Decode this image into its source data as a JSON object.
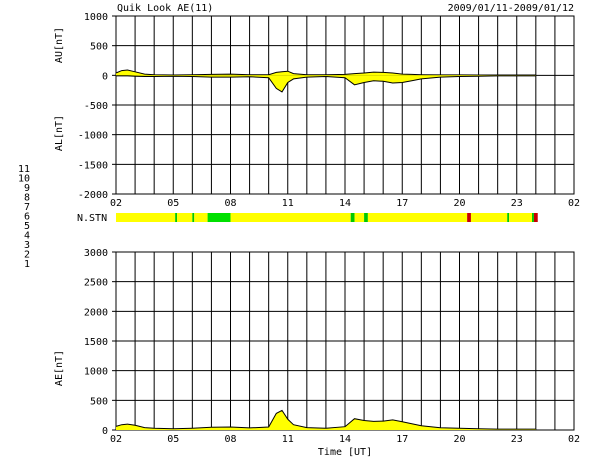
{
  "header": {
    "title": "Quik Look AE(11)",
    "date_range": "2009/01/11-2009/01/12"
  },
  "legend_numbers": [
    {
      "label": "11",
      "color": "#00c8c8"
    },
    {
      "label": "10",
      "color": "#c800c8"
    },
    {
      "label": "9",
      "color": "#0000c8"
    },
    {
      "label": "8",
      "color": "#e8e8a0"
    },
    {
      "label": "7",
      "color": "#00c800"
    },
    {
      "label": "6",
      "color": "#c80000"
    },
    {
      "label": "5",
      "color": "#c8c8c8"
    },
    {
      "label": "4",
      "color": "#a0a0c8"
    },
    {
      "label": "3",
      "color": "#008080"
    },
    {
      "label": "2",
      "color": "#800080"
    },
    {
      "label": "1",
      "color": "#0000a0"
    }
  ],
  "chart_data": [
    {
      "type": "area",
      "panel": "AU/AL",
      "ylabel_top": "AU[nT]",
      "ylabel_bottom": "AL[nT]",
      "ylim": [
        -2000,
        1000
      ],
      "yticks": [
        1000,
        500,
        0,
        -500,
        -1000,
        -1500,
        -2000
      ],
      "xlim": [
        2,
        26
      ],
      "xticks": [
        "02",
        "05",
        "08",
        "11",
        "14",
        "17",
        "20",
        "23",
        "02"
      ],
      "grid": true,
      "series": [
        {
          "name": "AU",
          "x": [
            2,
            2.3,
            2.6,
            3,
            3.5,
            4,
            5,
            6,
            7,
            8,
            9,
            10,
            10.4,
            10.7,
            11,
            11.3,
            12,
            13,
            14,
            14.5,
            15,
            15.5,
            16,
            16.5,
            17,
            17.5,
            18,
            19,
            20,
            21,
            22,
            23,
            24
          ],
          "values": [
            40,
            80,
            90,
            60,
            20,
            10,
            5,
            10,
            15,
            20,
            10,
            10,
            50,
            60,
            70,
            30,
            10,
            10,
            15,
            30,
            40,
            55,
            50,
            40,
            20,
            15,
            10,
            8,
            8,
            5,
            5,
            5,
            5
          ]
        },
        {
          "name": "AL",
          "x": [
            2,
            2.3,
            2.6,
            3,
            3.5,
            4,
            5,
            6,
            7,
            8,
            9,
            10,
            10.4,
            10.7,
            11,
            11.3,
            12,
            13,
            14,
            14.5,
            15,
            15.5,
            16,
            16.5,
            17,
            17.5,
            18,
            19,
            20,
            21,
            22,
            23,
            24
          ],
          "values": [
            -10,
            -10,
            -10,
            -15,
            -20,
            -20,
            -15,
            -20,
            -30,
            -30,
            -25,
            -40,
            -220,
            -280,
            -120,
            -60,
            -30,
            -20,
            -40,
            -160,
            -120,
            -90,
            -100,
            -130,
            -120,
            -90,
            -60,
            -30,
            -20,
            -15,
            -10,
            -10,
            -10
          ]
        }
      ]
    },
    {
      "type": "heatmap",
      "panel": "station-count",
      "label": "N.STN",
      "segments": [
        {
          "from": 2,
          "to": 5.1,
          "color": "#ffff00"
        },
        {
          "from": 5.1,
          "to": 5.2,
          "color": "#00c800"
        },
        {
          "from": 5.2,
          "to": 6.0,
          "color": "#ffff00"
        },
        {
          "from": 6.0,
          "to": 6.1,
          "color": "#00c800"
        },
        {
          "from": 6.1,
          "to": 6.8,
          "color": "#ffff00"
        },
        {
          "from": 6.8,
          "to": 8.0,
          "color": "#00e000"
        },
        {
          "from": 8.0,
          "to": 14.3,
          "color": "#ffff00"
        },
        {
          "from": 14.3,
          "to": 14.5,
          "color": "#00c800"
        },
        {
          "from": 14.5,
          "to": 15.0,
          "color": "#ffff00"
        },
        {
          "from": 15.0,
          "to": 15.2,
          "color": "#00c800"
        },
        {
          "from": 15.2,
          "to": 20.4,
          "color": "#ffff00"
        },
        {
          "from": 20.4,
          "to": 20.6,
          "color": "#c80000"
        },
        {
          "from": 20.6,
          "to": 22.5,
          "color": "#ffff00"
        },
        {
          "from": 22.5,
          "to": 22.6,
          "color": "#00c800"
        },
        {
          "from": 22.6,
          "to": 23.8,
          "color": "#ffff00"
        },
        {
          "from": 23.8,
          "to": 23.9,
          "color": "#00c800"
        },
        {
          "from": 23.9,
          "to": 24.1,
          "color": "#c80000"
        }
      ]
    },
    {
      "type": "area",
      "panel": "AE",
      "ylabel": "AE[nT]",
      "xlabel": "Time [UT]",
      "ylim": [
        0,
        3000
      ],
      "yticks": [
        3000,
        2500,
        2000,
        1500,
        1000,
        500,
        0
      ],
      "xlim": [
        2,
        26
      ],
      "xticks": [
        "02",
        "05",
        "08",
        "11",
        "14",
        "17",
        "20",
        "23",
        "02"
      ],
      "grid": true,
      "series": [
        {
          "name": "AE",
          "x": [
            2,
            2.3,
            2.6,
            3,
            3.5,
            4,
            5,
            6,
            7,
            8,
            9,
            10,
            10.4,
            10.7,
            11,
            11.3,
            12,
            13,
            14,
            14.5,
            15,
            15.5,
            16,
            16.5,
            17,
            17.5,
            18,
            19,
            20,
            21,
            22,
            23,
            24
          ],
          "values": [
            60,
            90,
            100,
            80,
            40,
            30,
            20,
            30,
            45,
            50,
            35,
            50,
            280,
            330,
            180,
            90,
            40,
            30,
            55,
            190,
            160,
            145,
            150,
            170,
            140,
            105,
            70,
            38,
            28,
            20,
            15,
            15,
            15
          ]
        }
      ]
    }
  ]
}
